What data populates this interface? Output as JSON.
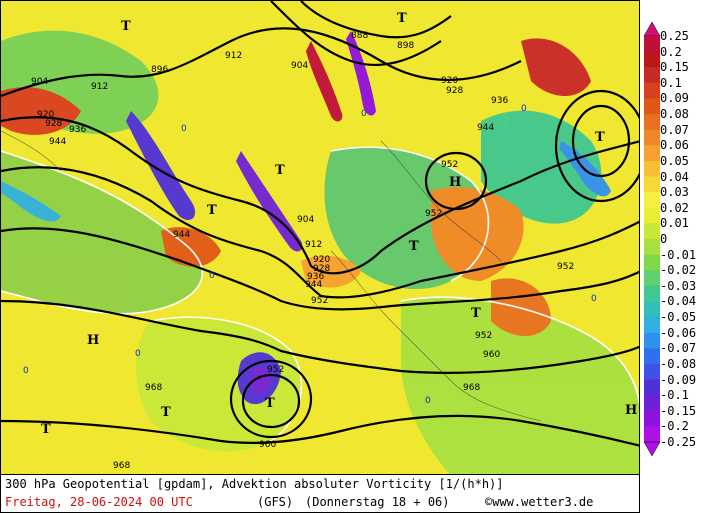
{
  "caption": {
    "title": "300 hPa Geopotential [gpdam], Advektion absoluter Vorticity [1/(h*h)]",
    "date": "Freitag, 28-06-2024  00 UTC",
    "model": "(GFS)",
    "run": "(Donnerstag 18 + 06)",
    "credit": "www.wetter3.de",
    "copyright_symbol": "©"
  },
  "legend": {
    "levels": [
      "0.25",
      "0.2",
      "0.15",
      "0.1",
      "0.09",
      "0.08",
      "0.07",
      "0.06",
      "0.05",
      "0.04",
      "0.03",
      "0.02",
      "0.01",
      "0",
      "-0.01",
      "-0.02",
      "-0.03",
      "-0.04",
      "-0.05",
      "-0.06",
      "-0.07",
      "-0.08",
      "-0.09",
      "-0.1",
      "-0.15",
      "-0.2",
      "-0.25"
    ],
    "colors": [
      "#d01078",
      "#c0103a",
      "#b81818",
      "#c82828",
      "#d84020",
      "#e05818",
      "#e87020",
      "#f08828",
      "#f8a030",
      "#f8c030",
      "#f8d838",
      "#f8f040",
      "#e8f030",
      "#c8e838",
      "#a8e040",
      "#80d848",
      "#60d070",
      "#40c890",
      "#30c0b8",
      "#30b0e0",
      "#3090f0",
      "#3070f0",
      "#4050e8",
      "#5030d8",
      "#7020d8",
      "#9010e0",
      "#b010e8"
    ]
  },
  "map": {
    "contour_labels": [
      "896",
      "888",
      "898",
      "904",
      "904",
      "912",
      "912",
      "920",
      "920",
      "928",
      "928",
      "936",
      "936",
      "944",
      "944",
      "944",
      "952",
      "952",
      "952",
      "952",
      "952",
      "960",
      "960",
      "968",
      "968",
      "968",
      "912",
      "904",
      "920",
      "928",
      "936",
      "944",
      "952"
    ],
    "system_labels": [
      "T",
      "T",
      "T",
      "T",
      "T",
      "T",
      "T",
      "T",
      "T",
      "T",
      "H",
      "H",
      "H"
    ],
    "vorticity_zero_label": "0"
  }
}
